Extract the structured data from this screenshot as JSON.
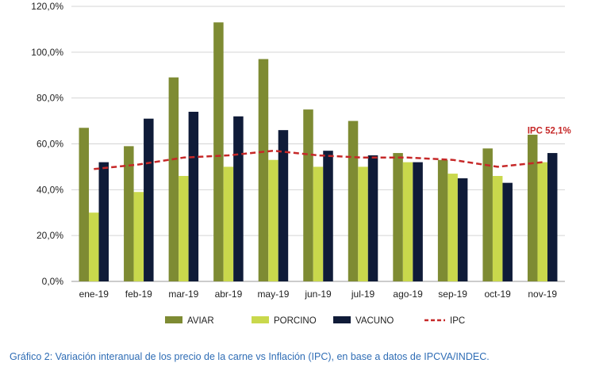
{
  "chart_data": {
    "type": "bar",
    "categories": [
      "ene-19",
      "feb-19",
      "mar-19",
      "abr-19",
      "may-19",
      "jun-19",
      "jul-19",
      "ago-19",
      "sep-19",
      "oct-19",
      "nov-19"
    ],
    "series": [
      {
        "name": "AVIAR",
        "kind": "bar",
        "color": "#7e8b33",
        "values": [
          67,
          59,
          89,
          113,
          97,
          75,
          70,
          56,
          53,
          58,
          64
        ]
      },
      {
        "name": "PORCINO",
        "kind": "bar",
        "color": "#c9d84c",
        "values": [
          30,
          39,
          46,
          50,
          53,
          50,
          50,
          52,
          47,
          46,
          52
        ]
      },
      {
        "name": "VACUNO",
        "kind": "bar",
        "color": "#0f1b38",
        "values": [
          52,
          71,
          74,
          72,
          66,
          57,
          55,
          52,
          45,
          43,
          56
        ]
      },
      {
        "name": "IPC",
        "kind": "line",
        "style": "dashed",
        "color": "#c62828",
        "values": [
          49,
          51,
          54,
          55,
          57,
          55,
          54,
          54,
          53,
          50,
          52
        ]
      }
    ],
    "y_ticks": [
      "0,0%",
      "20,0%",
      "40,0%",
      "60,0%",
      "80,0%",
      "100,0%",
      "120,0%"
    ],
    "ylim": [
      0,
      120
    ],
    "grid": true,
    "legend_position": "bottom",
    "annotation": {
      "text": "IPC 52,1%",
      "color": "#c62828"
    },
    "caption": {
      "text": "Gráfico 2: Variación interanual de los precio de la carne vs Inflación (IPC), en base a datos de IPCVA/INDEC.",
      "color": "#2f6db5"
    }
  }
}
